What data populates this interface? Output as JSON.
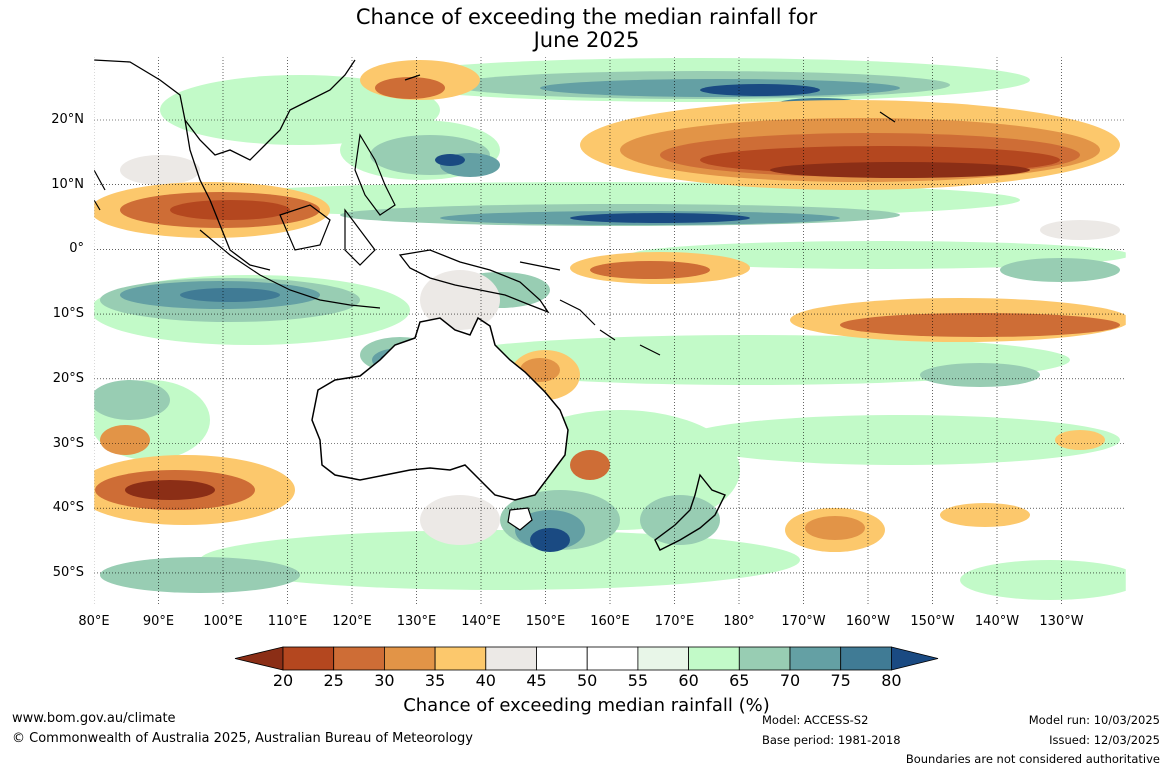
{
  "title": {
    "line1": "Chance of exceeding the median rainfall for",
    "line2": "June 2025"
  },
  "map": {
    "lat_labels": [
      "20°N",
      "10°N",
      "0°",
      "10°S",
      "20°S",
      "30°S",
      "40°S",
      "50°S"
    ],
    "lon_labels": [
      "80°E",
      "90°E",
      "100°E",
      "110°E",
      "120°E",
      "130°E",
      "140°E",
      "150°E",
      "160°E",
      "170°E",
      "180°",
      "170°W",
      "160°W",
      "150°W",
      "140°W",
      "130°W"
    ]
  },
  "colorbar": {
    "ticks": [
      "20",
      "25",
      "30",
      "35",
      "40",
      "45",
      "50",
      "55",
      "60",
      "65",
      "70",
      "75",
      "80"
    ],
    "colors": [
      "#8b2e16",
      "#b4471f",
      "#ce6d36",
      "#e29447",
      "#fcc86c",
      "#ece9e6",
      "#ffffff",
      "#ffffff",
      "#e8f6e8",
      "#c2fac8",
      "#98cdb3",
      "#64a0a4",
      "#407b95",
      "#1a4a82"
    ],
    "title": "Chance of exceeding median rainfall (%)"
  },
  "footer": {
    "url": "www.bom.gov.au/climate",
    "copyright": "© Commonwealth of Australia 2025, Australian Bureau of Meteorology",
    "model": "Model: ACCESS-S2",
    "base_period": "Base period: 1981-2018",
    "model_run": "Model run: 10/03/2025",
    "issued": "Issued: 12/03/2025",
    "disclaimer": "Boundaries are not considered authoritative"
  }
}
